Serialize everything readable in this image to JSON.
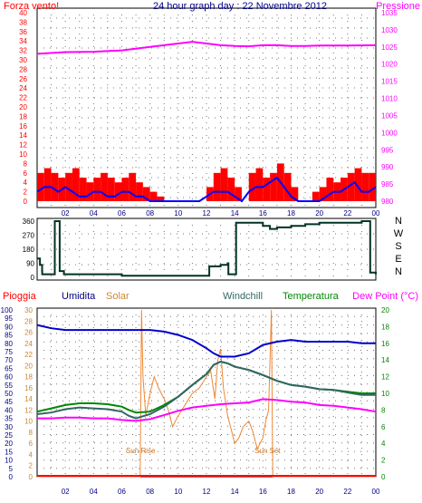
{
  "colors": {
    "wind": "#ff0000",
    "gust": "#0000ff",
    "pressure": "#ff00ff",
    "winddir": "#003322",
    "rain": "#ff0000",
    "humidity": "#0000cc",
    "solar": "#ee8833",
    "windchill": "#336666",
    "temperature": "#008800",
    "dewpoint": "#ff00ff",
    "frame": "#000000",
    "grid": "#777777"
  },
  "chart_data": [
    {
      "type": "line",
      "title": "24 hour graph day : 22 Novembre 2012",
      "left_label": "Forza vento!",
      "right_label": "Pressione",
      "x_ticks": [
        "02",
        "04",
        "06",
        "08",
        "10",
        "12",
        "14",
        "16",
        "18",
        "20",
        "22",
        "00"
      ],
      "left_ticks": [
        "40",
        "38",
        "36",
        "34",
        "32",
        "30",
        "28",
        "26",
        "24",
        "22",
        "20",
        "18",
        "16",
        "14",
        "12",
        "10",
        "8",
        "6",
        "4",
        "2",
        "0"
      ],
      "right_ticks": [
        "1035",
        "1030",
        "1025",
        "1020",
        "1015",
        "1010",
        "1005",
        "1000",
        "995",
        "990",
        "985",
        "980"
      ],
      "ylim_left": [
        0,
        40
      ],
      "ylim_right": [
        980,
        1035
      ],
      "x_range_hours": [
        0,
        24
      ],
      "series": [
        {
          "key": "pressure",
          "axis": "right",
          "x": [
            0,
            2,
            4,
            6,
            8,
            9,
            10,
            11,
            12,
            13,
            14,
            15,
            16,
            17,
            18,
            19,
            20,
            22,
            24
          ],
          "y": [
            1023,
            1023.5,
            1023.6,
            1024,
            1025,
            1025.5,
            1026,
            1026.5,
            1026,
            1025.5,
            1025.3,
            1025.2,
            1025.5,
            1025.5,
            1025.3,
            1025.3,
            1025.4,
            1025.4,
            1025.5
          ]
        },
        {
          "key": "wind",
          "axis": "left",
          "style": "bars",
          "x": [
            0,
            0.5,
            1,
            1.5,
            2,
            2.5,
            3,
            3.5,
            4,
            4.5,
            5,
            5.5,
            6,
            6.5,
            7,
            7.5,
            8,
            8.5,
            9,
            9.5,
            10,
            10.5,
            11,
            11.5,
            12,
            12.5,
            13,
            13.5,
            14,
            14.5,
            15,
            15.5,
            16,
            16.5,
            17,
            17.5,
            18,
            18.5,
            19,
            19.5,
            20,
            20.5,
            21,
            21.5,
            22,
            22.5,
            23,
            23.5
          ],
          "y": [
            6,
            7,
            6,
            5,
            6,
            7,
            5,
            4,
            5,
            6,
            5,
            4,
            5,
            6,
            4,
            3,
            2,
            1,
            0,
            0,
            0,
            0,
            0,
            0,
            3,
            6,
            7,
            5,
            3,
            0,
            6,
            7,
            5,
            6,
            8,
            6,
            3,
            0,
            0,
            2,
            3,
            5,
            4,
            5,
            6,
            7,
            6,
            6
          ]
        },
        {
          "key": "gust",
          "axis": "left",
          "x": [
            0,
            0.5,
            1,
            1.5,
            2,
            2.5,
            3,
            3.5,
            4,
            4.5,
            5,
            5.5,
            6,
            6.5,
            7,
            7.5,
            8,
            8.5,
            9,
            9.5,
            10,
            10.5,
            11,
            11.5,
            12,
            12.5,
            13,
            13.5,
            14,
            14.5,
            15,
            15.5,
            16,
            16.5,
            17,
            17.5,
            18,
            18.5,
            19,
            19.5,
            20,
            20.5,
            21,
            21.5,
            22,
            22.5,
            23,
            23.5,
            24
          ],
          "y": [
            2,
            3,
            3,
            2,
            3,
            2,
            1,
            1,
            2,
            2,
            1,
            1,
            2,
            2,
            1,
            1,
            0,
            0,
            0,
            0,
            0,
            0,
            0,
            0,
            1,
            2,
            2,
            2,
            1,
            0,
            2,
            3,
            3,
            4,
            5,
            3,
            1,
            0,
            0,
            0,
            0,
            1,
            2,
            2,
            3,
            4,
            2,
            2,
            3
          ]
        }
      ]
    },
    {
      "type": "line",
      "title": "",
      "left_ticks": [
        "360",
        "270",
        "180",
        "90",
        "0"
      ],
      "direction_labels": [
        "N",
        "W",
        "S",
        "E",
        "N"
      ],
      "ylim": [
        0,
        360
      ],
      "x_range_hours": [
        0,
        24
      ],
      "series": [
        {
          "key": "winddir",
          "x": [
            0,
            0.2,
            0.35,
            0.36,
            1.2,
            1.25,
            1.3,
            1.6,
            1.9,
            2,
            3,
            4,
            5,
            6,
            7,
            8,
            9,
            10,
            11,
            12,
            12.2,
            13,
            13.5,
            13.55,
            14,
            14.1,
            14.15,
            15,
            16,
            16.5,
            17,
            18,
            19,
            20,
            21,
            22,
            23,
            23.5,
            23.6,
            24
          ],
          "y": [
            120,
            80,
            40,
            20,
            20,
            360,
            360,
            40,
            20,
            20,
            20,
            20,
            20,
            10,
            10,
            10,
            10,
            10,
            10,
            10,
            70,
            80,
            90,
            20,
            20,
            350,
            350,
            350,
            330,
            310,
            320,
            330,
            340,
            350,
            350,
            350,
            360,
            360,
            30,
            20
          ]
        }
      ]
    },
    {
      "type": "line",
      "title": "",
      "legend": [
        "Pioggia",
        "Umidita",
        "Solar",
        "Windchill",
        "Temperatura",
        "Dew Point (°C)"
      ],
      "left_ticks": [
        "100",
        "95",
        "90",
        "85",
        "80",
        "75",
        "70",
        "65",
        "60",
        "55",
        "50",
        "45",
        "40",
        "35",
        "30",
        "25",
        "20",
        "15",
        "10",
        "5",
        "0"
      ],
      "second_ticks": [
        "30",
        "28",
        "26",
        "24",
        "22",
        "20",
        "18",
        "16",
        "14",
        "12",
        "10",
        "8",
        "6",
        "4",
        "2",
        "0"
      ],
      "right_ticks": [
        "20",
        "18",
        "16",
        "14",
        "12",
        "10",
        "8",
        "6",
        "4",
        "2",
        "0"
      ],
      "ylim_left": [
        0,
        100
      ],
      "ylim_second": [
        0,
        30
      ],
      "ylim_right": [
        0,
        20
      ],
      "annotations": [
        "Sun Rise",
        "Sun Set"
      ],
      "x_range_hours": [
        0,
        24
      ],
      "series": [
        {
          "key": "humidity",
          "axis": "left",
          "x": [
            0,
            1,
            2,
            3,
            4,
            5,
            6,
            7,
            8,
            9,
            10,
            11,
            12,
            12.5,
            13,
            14,
            15,
            16,
            17,
            18,
            19,
            20,
            21,
            22,
            23,
            24
          ],
          "y": [
            91,
            89,
            88,
            88,
            88,
            88,
            88,
            88,
            88,
            87,
            85,
            82,
            77,
            74,
            72,
            72,
            74,
            79,
            81,
            82,
            81,
            81,
            81,
            81,
            80,
            80
          ]
        },
        {
          "key": "temperature",
          "axis": "right",
          "x": [
            0,
            1,
            2,
            3,
            4,
            5,
            6,
            6.5,
            7,
            8,
            9,
            10,
            11,
            12,
            12.5,
            13,
            13.5,
            14,
            15,
            15.5,
            16,
            17,
            18,
            19,
            20,
            21,
            22,
            23,
            24
          ],
          "y": [
            7.8,
            8.2,
            8.6,
            8.8,
            8.8,
            8.7,
            8.4,
            8,
            7.7,
            7.8,
            8.6,
            9.6,
            11,
            12.3,
            13.4,
            13.8,
            13.6,
            13.2,
            12.8,
            12.5,
            12.2,
            11.5,
            11,
            10.8,
            10.5,
            10.4,
            10.2,
            10,
            10
          ]
        },
        {
          "key": "windchill",
          "axis": "right",
          "x": [
            0,
            1,
            2,
            3,
            4,
            5,
            6,
            6.5,
            7,
            8,
            9,
            10,
            11,
            12,
            12.5,
            13,
            13.5,
            14,
            15,
            15.5,
            16,
            17,
            18,
            19,
            20,
            21,
            22,
            23,
            24
          ],
          "y": [
            7.5,
            7.7,
            8.1,
            8.3,
            8.2,
            8.1,
            7.8,
            7.3,
            7,
            7.5,
            8.4,
            9.6,
            11,
            12.3,
            13.4,
            13.8,
            13.6,
            13.2,
            12.8,
            12.5,
            12.2,
            11.5,
            11,
            10.8,
            10.5,
            10.4,
            10.1,
            9.8,
            9.8
          ]
        },
        {
          "key": "dewpoint",
          "axis": "right",
          "x": [
            0,
            1,
            2,
            3,
            4,
            5,
            6,
            7,
            8,
            9,
            10,
            11,
            12,
            13,
            14,
            15,
            16,
            17,
            18,
            19,
            20,
            21,
            22,
            23,
            24
          ],
          "y": [
            7,
            7,
            7.1,
            7.1,
            7,
            7,
            6.8,
            6.7,
            6.9,
            7.4,
            7.9,
            8.3,
            8.5,
            8.7,
            8.8,
            8.9,
            9.3,
            9.2,
            9,
            8.9,
            8.6,
            8.5,
            8.3,
            8.1,
            7.8
          ]
        },
        {
          "key": "solar",
          "axis": "second",
          "x": [
            0,
            7.3,
            7.4,
            7.5,
            7.7,
            8,
            8.3,
            8.6,
            9,
            9.3,
            9.6,
            10,
            10.5,
            11,
            11.5,
            12,
            12.3,
            12.6,
            12.8,
            13,
            13.2,
            13.5,
            14,
            14.3,
            14.6,
            15,
            15.3,
            15.6,
            16,
            16.2,
            16.4,
            16.6,
            16.7,
            24
          ],
          "y": [
            0,
            0,
            30,
            18,
            11,
            15,
            18,
            16,
            14,
            12,
            9,
            11,
            13,
            15,
            16,
            18,
            19,
            14,
            21,
            23,
            16,
            11,
            6,
            7,
            9,
            10,
            8,
            5,
            7,
            10,
            12,
            30,
            0,
            0
          ]
        },
        {
          "key": "rain",
          "axis": "left",
          "x": [
            0,
            24
          ],
          "y": [
            0,
            0
          ]
        }
      ]
    }
  ]
}
